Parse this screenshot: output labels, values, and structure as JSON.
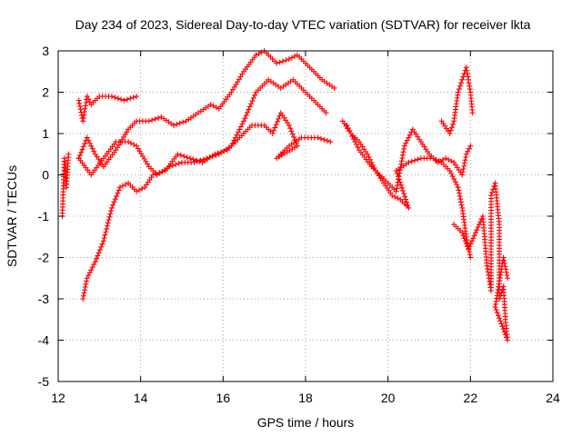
{
  "chart_data": {
    "type": "scatter",
    "title": "Day 234 of 2023, Sidereal Day-to-day VTEC variation (SDTVAR) for receiver lkta",
    "xlabel": "GPS time / hours",
    "ylabel": "SDTVAR / TECUs",
    "xlim": [
      12,
      24
    ],
    "ylim": [
      -5,
      3
    ],
    "xticks": [
      12,
      14,
      16,
      18,
      20,
      22,
      24
    ],
    "yticks": [
      -5,
      -4,
      -3,
      -2,
      -1,
      0,
      1,
      2,
      3
    ],
    "grid": true,
    "marker": "+",
    "color": "#ff0000",
    "series": [
      {
        "name": "trace-a",
        "points": [
          [
            12.1,
            -1.0
          ],
          [
            12.15,
            0.4
          ],
          [
            12.2,
            -0.3
          ],
          [
            12.25,
            0.5
          ]
        ]
      },
      {
        "name": "trace-b",
        "points": [
          [
            12.5,
            1.8
          ],
          [
            12.6,
            1.3
          ],
          [
            12.7,
            1.9
          ],
          [
            12.8,
            1.7
          ],
          [
            13.0,
            1.9
          ],
          [
            13.3,
            1.9
          ],
          [
            13.6,
            1.8
          ],
          [
            13.9,
            1.9
          ]
        ]
      },
      {
        "name": "trace-c",
        "points": [
          [
            12.5,
            0.4
          ],
          [
            12.7,
            0.9
          ],
          [
            12.9,
            0.5
          ],
          [
            13.1,
            0.2
          ],
          [
            13.4,
            0.6
          ],
          [
            13.7,
            1.1
          ],
          [
            13.9,
            1.3
          ],
          [
            14.2,
            1.3
          ],
          [
            14.5,
            1.4
          ],
          [
            14.8,
            1.2
          ],
          [
            15.1,
            1.3
          ],
          [
            15.4,
            1.5
          ],
          [
            15.7,
            1.7
          ],
          [
            15.9,
            1.6
          ],
          [
            16.2,
            2.0
          ],
          [
            16.5,
            2.5
          ],
          [
            16.8,
            2.9
          ],
          [
            17.0,
            3.0
          ],
          [
            17.3,
            2.7
          ],
          [
            17.6,
            2.8
          ],
          [
            17.8,
            2.9
          ],
          [
            18.0,
            2.7
          ],
          [
            18.2,
            2.5
          ],
          [
            18.4,
            2.3
          ],
          [
            18.7,
            2.1
          ]
        ]
      },
      {
        "name": "trace-d",
        "points": [
          [
            12.5,
            0.4
          ],
          [
            12.8,
            0.0
          ],
          [
            13.1,
            0.4
          ],
          [
            13.4,
            0.8
          ],
          [
            13.7,
            0.8
          ],
          [
            13.9,
            0.7
          ],
          [
            14.2,
            0.2
          ],
          [
            14.4,
            0.0
          ],
          [
            14.7,
            0.2
          ],
          [
            15.0,
            0.3
          ],
          [
            15.3,
            0.3
          ],
          [
            15.6,
            0.4
          ],
          [
            15.9,
            0.5
          ],
          [
            16.2,
            0.7
          ],
          [
            16.5,
            1.3
          ],
          [
            16.8,
            2.0
          ],
          [
            17.1,
            2.3
          ],
          [
            17.4,
            2.1
          ],
          [
            17.7,
            2.3
          ],
          [
            18.0,
            2.0
          ],
          [
            18.3,
            1.7
          ],
          [
            18.5,
            1.5
          ]
        ]
      },
      {
        "name": "trace-e",
        "points": [
          [
            12.6,
            -3.0
          ],
          [
            12.7,
            -2.5
          ],
          [
            12.9,
            -2.1
          ],
          [
            13.1,
            -1.6
          ],
          [
            13.3,
            -0.8
          ],
          [
            13.5,
            -0.3
          ],
          [
            13.7,
            -0.2
          ],
          [
            13.9,
            -0.4
          ],
          [
            14.1,
            -0.3
          ],
          [
            14.3,
            0.0
          ],
          [
            14.6,
            0.1
          ],
          [
            14.9,
            0.5
          ],
          [
            15.2,
            0.4
          ],
          [
            15.5,
            0.3
          ],
          [
            15.8,
            0.5
          ],
          [
            16.1,
            0.6
          ],
          [
            16.4,
            0.9
          ],
          [
            16.7,
            1.2
          ],
          [
            17.0,
            1.2
          ],
          [
            17.2,
            1.0
          ],
          [
            17.4,
            1.5
          ],
          [
            17.6,
            1.2
          ],
          [
            17.8,
            0.7
          ],
          [
            17.3,
            0.4
          ],
          [
            17.6,
            0.7
          ],
          [
            17.9,
            0.9
          ],
          [
            18.3,
            0.9
          ],
          [
            18.6,
            0.8
          ]
        ]
      },
      {
        "name": "trace-f",
        "points": [
          [
            18.9,
            1.3
          ],
          [
            19.1,
            1.0
          ],
          [
            19.3,
            0.8
          ],
          [
            19.5,
            0.5
          ],
          [
            19.7,
            0.1
          ],
          [
            19.9,
            -0.2
          ],
          [
            20.1,
            -0.5
          ],
          [
            20.3,
            -0.6
          ],
          [
            20.5,
            -0.8
          ],
          [
            20.2,
            0.1
          ],
          [
            20.5,
            0.3
          ],
          [
            20.8,
            0.4
          ],
          [
            21.1,
            0.4
          ],
          [
            21.3,
            0.3
          ],
          [
            21.5,
            0.1
          ],
          [
            21.7,
            -0.3
          ],
          [
            21.8,
            -0.8
          ],
          [
            21.9,
            -1.5
          ],
          [
            22.0,
            -2.0
          ]
        ]
      },
      {
        "name": "trace-g",
        "points": [
          [
            19.0,
            1.2
          ],
          [
            19.3,
            0.6
          ],
          [
            19.6,
            0.2
          ],
          [
            19.9,
            -0.1
          ],
          [
            20.2,
            -0.4
          ],
          [
            20.4,
            0.7
          ],
          [
            20.6,
            1.1
          ],
          [
            20.8,
            0.8
          ],
          [
            21.0,
            0.5
          ],
          [
            21.2,
            0.3
          ],
          [
            21.4,
            0.4
          ],
          [
            21.6,
            0.3
          ],
          [
            21.8,
            0.0
          ],
          [
            21.9,
            0.5
          ],
          [
            22.0,
            0.7
          ]
        ]
      },
      {
        "name": "trace-h",
        "points": [
          [
            21.3,
            1.3
          ],
          [
            21.5,
            1.0
          ],
          [
            21.6,
            1.3
          ],
          [
            21.7,
            2.0
          ],
          [
            21.8,
            2.3
          ],
          [
            21.9,
            2.6
          ],
          [
            22.0,
            2.0
          ],
          [
            22.05,
            1.5
          ]
        ]
      },
      {
        "name": "trace-i",
        "points": [
          [
            21.6,
            -1.2
          ],
          [
            21.8,
            -1.4
          ],
          [
            21.95,
            -1.8
          ],
          [
            22.3,
            -1.0
          ],
          [
            22.4,
            -2.2
          ],
          [
            22.5,
            -2.8
          ],
          [
            22.5,
            -0.5
          ],
          [
            22.6,
            -0.2
          ],
          [
            22.7,
            -1.2
          ],
          [
            22.7,
            -3.0
          ],
          [
            22.8,
            -2.7
          ],
          [
            22.85,
            -3.5
          ],
          [
            22.9,
            -4.0
          ],
          [
            22.6,
            -3.2
          ],
          [
            22.8,
            -2.0
          ],
          [
            22.9,
            -2.5
          ]
        ]
      }
    ]
  }
}
